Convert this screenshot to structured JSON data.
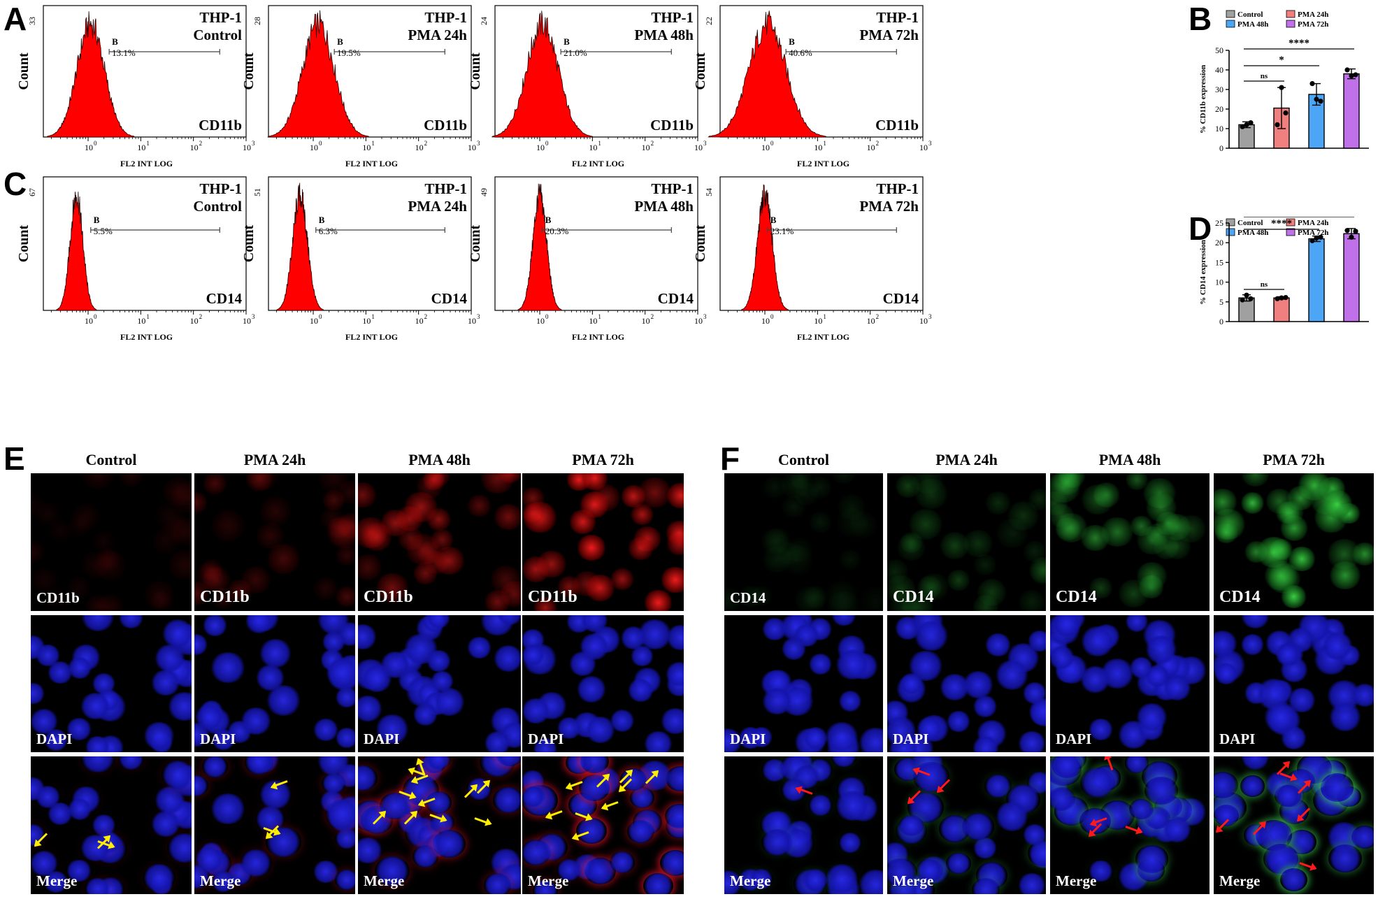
{
  "figure": {
    "panel_labels": [
      "A",
      "B",
      "C",
      "D",
      "E",
      "F"
    ]
  },
  "histograms": {
    "x_axis_label": "FL2 INT LOG",
    "y_axis_label": "Count",
    "gate_label": "B",
    "ticks": [
      "10",
      "0",
      "10",
      "1",
      "10",
      "2",
      "10",
      "3"
    ],
    "rows": [
      {
        "marker": "CD11b",
        "plots": [
          {
            "title_line1": "THP-1",
            "title_line2": "Control",
            "ymax": "33",
            "percent": "13.1%"
          },
          {
            "title_line1": "THP-1",
            "title_line2": "PMA 24h",
            "ymax": "28",
            "percent": "19.5%"
          },
          {
            "title_line1": "THP-1",
            "title_line2": "PMA 48h",
            "ymax": "24",
            "percent": "21.0%"
          },
          {
            "title_line1": "THP-1",
            "title_line2": "PMA 72h",
            "ymax": "22",
            "percent": "40.6%"
          }
        ]
      },
      {
        "marker": "CD14",
        "plots": [
          {
            "title_line1": "THP-1",
            "title_line2": "Control",
            "ymax": "67",
            "percent": "5.5%"
          },
          {
            "title_line1": "THP-1",
            "title_line2": "PMA 24h",
            "ymax": "51",
            "percent": "6.3%"
          },
          {
            "title_line1": "THP-1",
            "title_line2": "PMA 48h",
            "ymax": "49",
            "percent": "20.3%"
          },
          {
            "title_line1": "THP-1",
            "title_line2": "PMA 72h",
            "ymax": "54",
            "percent": "23.1%"
          }
        ]
      }
    ]
  },
  "chart_data": [
    {
      "type": "bar",
      "panel": "B",
      "categories": [
        "Control",
        "PMA 24h",
        "PMA 48h",
        "PMA 72h"
      ],
      "values": [
        12,
        20.5,
        27.5,
        38
      ],
      "errors": [
        1.5,
        10.5,
        5.5,
        2.5
      ],
      "points": [
        [
          11,
          12,
          13
        ],
        [
          12,
          31,
          18
        ],
        [
          33,
          25,
          24
        ],
        [
          40,
          37,
          37.5
        ]
      ],
      "colors": [
        "#a0a0a0",
        "#f08080",
        "#4da6f5",
        "#c070e8"
      ],
      "ylabel": "% CD11b expression",
      "ylim": [
        0,
        50
      ],
      "yticks": [
        0,
        10,
        20,
        30,
        40,
        50
      ],
      "significance": [
        {
          "from": 0,
          "to": 1,
          "label": "ns"
        },
        {
          "from": 0,
          "to": 2,
          "label": "*"
        },
        {
          "from": 0,
          "to": 3,
          "label": "****"
        }
      ],
      "legend": [
        "Control",
        "PMA 24h",
        "PMA 48h",
        "PMA 72h"
      ]
    },
    {
      "type": "bar",
      "panel": "D",
      "categories": [
        "Control",
        "PMA 24h",
        "PMA 48h",
        "PMA 72h"
      ],
      "values": [
        6,
        6,
        21,
        22.3
      ],
      "errors": [
        0.8,
        0.3,
        0.7,
        1.3
      ],
      "points": [
        [
          5.5,
          6.7,
          5.8
        ],
        [
          5.8,
          6.0,
          6.1
        ],
        [
          20.5,
          21.2,
          21.4
        ],
        [
          23.1,
          21.4,
          22.9
        ]
      ],
      "colors": [
        "#a0a0a0",
        "#f08080",
        "#4da6f5",
        "#c070e8"
      ],
      "ylabel": "% CD14 expression",
      "ylim": [
        0,
        25
      ],
      "yticks": [
        0,
        5,
        10,
        15,
        20,
        25
      ],
      "significance": [
        {
          "from": 0,
          "to": 1,
          "label": "ns"
        },
        {
          "from": 0,
          "to": 2,
          "label": "****"
        },
        {
          "from": 0,
          "to": 3,
          "label": "****"
        }
      ],
      "legend": [
        "Control",
        "PMA 24h",
        "PMA 48h",
        "PMA 72h"
      ]
    }
  ],
  "microscopy": {
    "column_titles": [
      "Control",
      "PMA 24h",
      "PMA 48h",
      "PMA 72h"
    ],
    "E": {
      "row_labels": [
        "CD11b",
        "DAPI",
        "Merge"
      ],
      "marker_color": "#ff2020",
      "arrow_color": "#ffee00"
    },
    "F": {
      "row_labels": [
        "CD14",
        "DAPI",
        "Merge"
      ],
      "marker_color": "#30ff40",
      "arrow_color": "#ff1a1a"
    }
  }
}
